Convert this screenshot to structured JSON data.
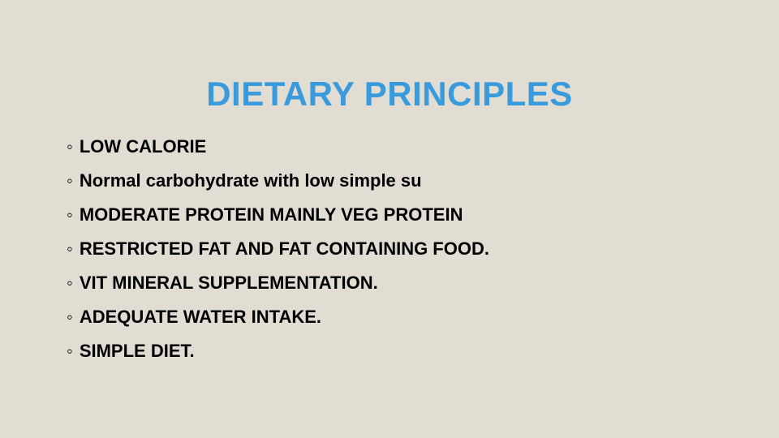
{
  "slide": {
    "background_color": "#e2ddd3",
    "title": {
      "text": "DIETARY PRINCIPLES",
      "color": "#3a9bdc",
      "fontsize": 42,
      "font_weight": "bold",
      "align": "center"
    },
    "bullets": {
      "marker": "◦",
      "text_color": "#000000",
      "fontsize": 22,
      "font_weight": "bold",
      "items": [
        "LOW CALORIE",
        "Normal carbohydrate  with low simple su",
        "MODERATE PROTEIN MAINLY VEG PROTEIN",
        "RESTRICTED FAT AND FAT CONTAINING FOOD.",
        "VIT MINERAL SUPPLEMENTATION.",
        "ADEQUATE WATER INTAKE.",
        "SIMPLE DIET."
      ]
    }
  }
}
